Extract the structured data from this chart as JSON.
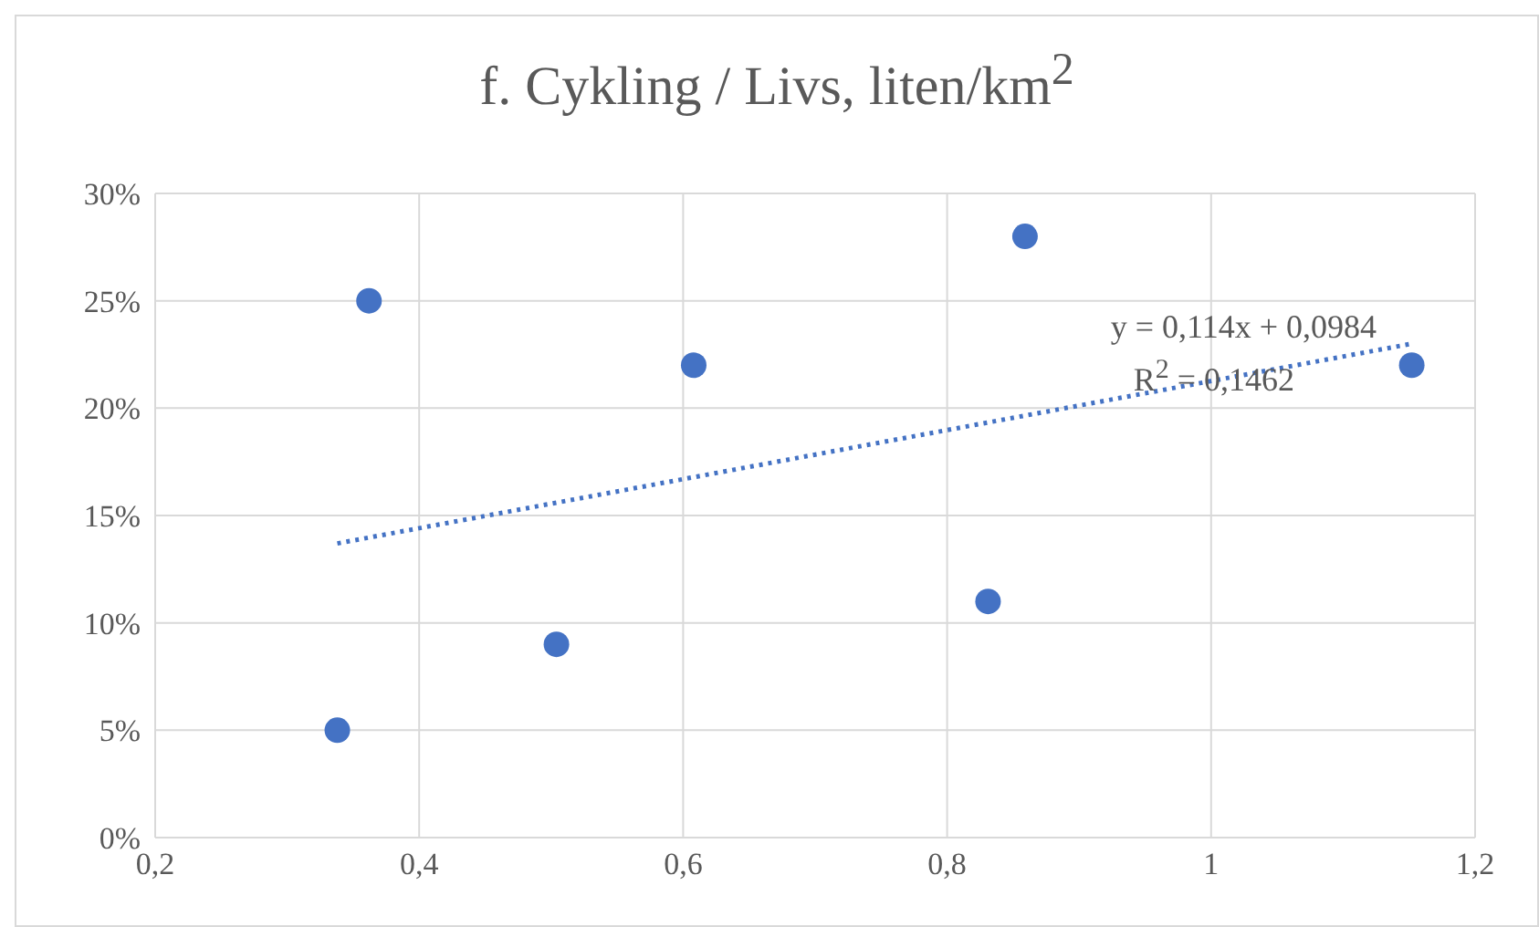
{
  "chart_data": {
    "type": "scatter",
    "title": "f. Cykling / Livs, liten/km$^{2}$",
    "series": [
      {
        "color": "#4472c4",
        "marker": "circle",
        "x": [
          0.338,
          0.362,
          0.504,
          0.608,
          0.831,
          0.859,
          1.152
        ],
        "values": [
          0.05,
          0.25,
          0.09,
          0.22,
          0.11,
          0.28,
          0.22
        ]
      },
      {
        "type": "line",
        "color": "#4472c4",
        "line_style": "dotted",
        "marker": "none",
        "x": [
          0.338,
          1.152
        ],
        "values": [
          0.137,
          0.23
        ]
      }
    ],
    "xlim": [
      0.2,
      1.2
    ],
    "xticks": [
      {
        "value": 0.2,
        "label": "0,2"
      },
      {
        "value": 0.4,
        "label": "0,4"
      },
      {
        "value": 0.6,
        "label": "0,6"
      },
      {
        "value": 0.8,
        "label": "0,8"
      },
      {
        "value": 1,
        "label": "1"
      },
      {
        "value": 1.2,
        "label": "1,2"
      }
    ],
    "ylim": [
      0,
      0.3
    ],
    "yticks": [
      {
        "value": 0,
        "label": "0%"
      },
      {
        "value": 0.05,
        "label": "5%"
      },
      {
        "value": 0.1,
        "label": "10%"
      },
      {
        "value": 0.15,
        "label": "15%"
      },
      {
        "value": 0.2,
        "label": "20%"
      },
      {
        "value": 0.25,
        "label": "25%"
      },
      {
        "value": 0.3,
        "label": "30%"
      }
    ],
    "grid": true,
    "annotations": [
      "y = 0,114x + 0,0984",
      "R$^{2}$ = 0,1462"
    ]
  }
}
